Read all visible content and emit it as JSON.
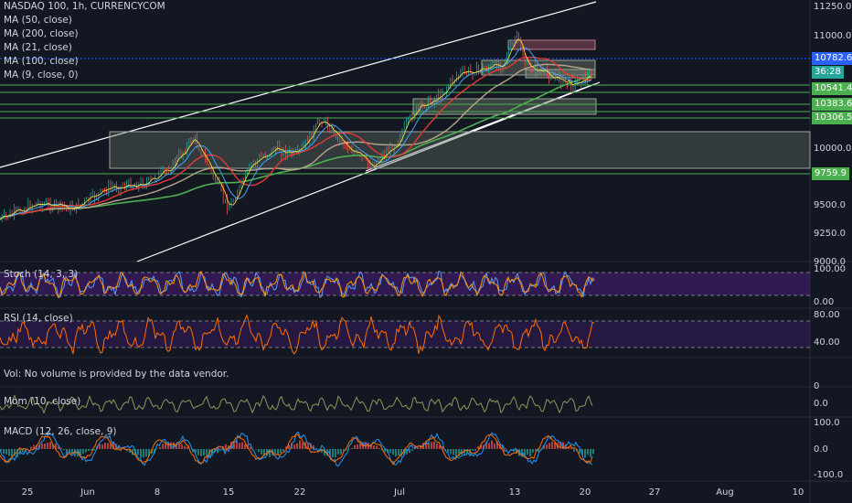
{
  "main": {
    "title": "NASDAQ 100, 1h, CURRENCYCOM",
    "indicators": [
      "MA (50, close)",
      "MA (200, close)",
      "MA (21, close)",
      "MA (100, close)",
      "MA (9, close, 0)"
    ],
    "price_ticks": [
      "11250.0",
      "11000.0",
      "10000.0",
      "9500.0",
      "9250.0",
      "9000.0"
    ],
    "price_labels": {
      "l1": {
        "text": "10782.6",
        "color": "#2962ff"
      },
      "timer": {
        "text": "36:28",
        "color": "#26a69a"
      },
      "l2": {
        "text": "10541.4",
        "color": "#4caf50"
      },
      "l3": {
        "text": "10383.6",
        "color": "#4caf50"
      },
      "l4": {
        "text": "10306.5",
        "color": "#4caf50"
      },
      "l5": {
        "text": "9759.9",
        "color": "#4caf50"
      }
    }
  },
  "panes": {
    "stoch": {
      "label": "Stoch (14, 3, 3)",
      "ticks": [
        "100.00",
        "0.00"
      ]
    },
    "rsi": {
      "label": "RSI (14, close)",
      "ticks": [
        "80.00",
        "40.00"
      ]
    },
    "vol": {
      "label": "Vol: No volume is provided by the data vendor.",
      "ticks": [
        "0"
      ]
    },
    "mom": {
      "label": "Mom (10, close)",
      "ticks": [
        "0.0"
      ]
    },
    "macd": {
      "label": "MACD (12, 26, close, 9)",
      "ticks": [
        "100.0",
        "0.0",
        "-100.0"
      ]
    }
  },
  "time_axis": [
    "25",
    "Jun",
    "8",
    "15",
    "22",
    "Jul",
    "13",
    "20",
    "27",
    "Aug",
    "10"
  ],
  "colors": {
    "background": "#131722",
    "candle_up": "#26a69a",
    "candle_down": "#ef5350",
    "ma_green": "#4caf50",
    "ma_red": "#e53935",
    "ma_tan": "#b8a68a",
    "ma_blue": "#42a5f5",
    "stoch_fill": "#4a1d7a",
    "rsi_line": "#ff6d00"
  }
}
